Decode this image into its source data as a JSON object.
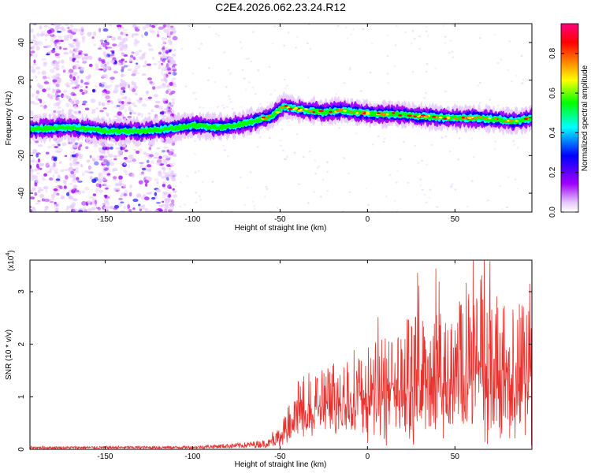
{
  "title": "C2E4.2026.062.23.24.R12",
  "chart_data": [
    {
      "type": "heatmap",
      "xlabel": "Height of straight line (km)",
      "ylabel": "Frequency (Hz)",
      "xlim": [
        -193,
        94
      ],
      "ylim": [
        -50,
        50
      ],
      "xticks": [
        -150,
        -100,
        -50,
        0,
        50
      ],
      "yticks": [
        -40,
        -20,
        0,
        20,
        40
      ],
      "xtick_labels": [
        "-150",
        "-100",
        "-50",
        "0",
        "50"
      ],
      "ytick_labels": [
        "-40",
        "-20",
        "0",
        "20",
        "40"
      ],
      "colorbar": {
        "label": "Normalized spectral amplitude",
        "range": [
          0,
          0.95
        ],
        "ticks": [
          0.0,
          0.2,
          0.4,
          0.6,
          0.8
        ],
        "tick_labels": [
          "0.0",
          "0.2",
          "0.4",
          "0.6",
          "0.8"
        ],
        "colors": [
          "#ffffff",
          "#e6c8ff",
          "#a000ff",
          "#0000ff",
          "#00ffff",
          "#00ff00",
          "#ffff00",
          "#ff8000",
          "#ff0000",
          "#ff0080"
        ]
      },
      "ridge": {
        "x": [
          -193,
          -170,
          -150,
          -130,
          -115,
          -100,
          -85,
          -75,
          -65,
          -55,
          -48,
          -42,
          -35,
          -25,
          -15,
          -5,
          5,
          15,
          30,
          45,
          60,
          75,
          85,
          94
        ],
        "frequency": [
          -6,
          -5,
          -7,
          -7,
          -6,
          -4,
          -5,
          -4,
          -2,
          1,
          6,
          5,
          4,
          3,
          4,
          3,
          2,
          2,
          1,
          0,
          0,
          -1,
          -2,
          0
        ]
      }
    },
    {
      "type": "line",
      "xlabel": "Height of straight line (km)",
      "ylabel": "SNR (10 * v/v)",
      "yscale_label": "(x10",
      "yscale_exp": "4",
      "xlim": [
        -193,
        94
      ],
      "ylim": [
        0,
        3.6
      ],
      "xticks": [
        -150,
        -100,
        -50,
        0,
        50
      ],
      "yticks": [
        0,
        1,
        2,
        3
      ],
      "xtick_labels": [
        "-150",
        "-100",
        "-50",
        "0",
        "50"
      ],
      "ytick_labels": [
        "0",
        "1",
        "2",
        "3"
      ],
      "series": [
        {
          "name": "SNR",
          "color": "#e8322e",
          "envelope_x": [
            -193,
            -100,
            -90,
            -80,
            -70,
            -60,
            -50,
            -45,
            -40,
            -30,
            -20,
            -10,
            0,
            10,
            20,
            30,
            40,
            50,
            60,
            70,
            80,
            90,
            94
          ],
          "envelope_y": [
            0.05,
            0.06,
            0.08,
            0.1,
            0.12,
            0.16,
            0.22,
            0.45,
            0.7,
            0.8,
            0.9,
            1.0,
            1.05,
            1.15,
            1.3,
            1.45,
            1.45,
            1.5,
            1.55,
            1.6,
            1.5,
            1.45,
            1.4
          ],
          "peak_x": 70,
          "peak_y": 3.58
        }
      ]
    }
  ]
}
